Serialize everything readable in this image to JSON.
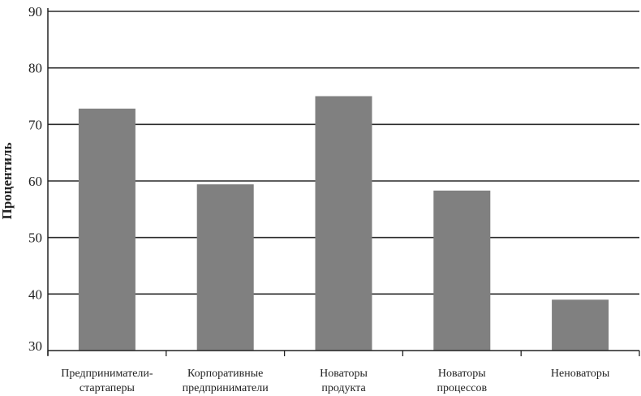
{
  "chart_data": {
    "type": "bar",
    "title": "",
    "xlabel": "",
    "ylabel": "Процентиль",
    "ylim": [
      30,
      90
    ],
    "yticks": [
      30,
      40,
      50,
      60,
      70,
      80,
      90
    ],
    "grid": true,
    "categories": [
      [
        "Предприниматели-",
        "стартаперы"
      ],
      [
        "Корпоративные",
        "предприниматели"
      ],
      [
        "Новаторы",
        "продукта"
      ],
      [
        "Новаторы",
        "процессов"
      ],
      [
        "Неноваторы"
      ]
    ],
    "values": [
      72.8,
      59.4,
      75,
      58.3,
      39
    ],
    "colors": {
      "bar": "#808080",
      "grid": "#2a2a2a"
    }
  }
}
